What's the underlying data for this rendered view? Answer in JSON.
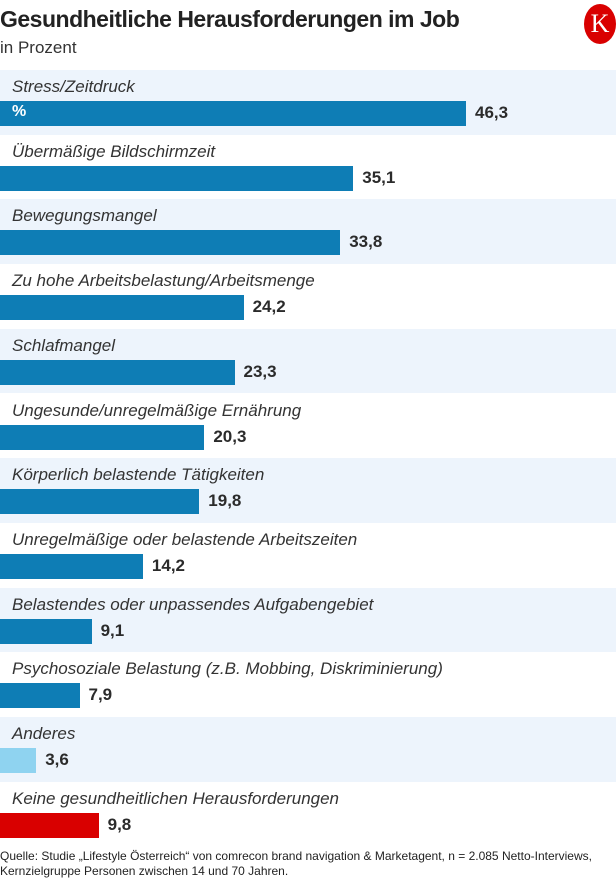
{
  "header": {
    "title": "Gesundheitliche Herausforderungen im Job",
    "subtitle": "in Prozent",
    "logo": "K"
  },
  "chart_data": {
    "type": "bar",
    "orientation": "horizontal",
    "title": "Gesundheitliche Herausforderungen im Job",
    "subtitle": "in Prozent",
    "unit_label": "%",
    "categories": [
      "Stress/Zeitdruck",
      "Übermäßige Bildschirmzeit",
      "Bewegungsmangel",
      "Zu hohe Arbeitsbelastung/Arbeitsmenge",
      "Schlafmangel",
      "Ungesunde/unregelmäßige Ernährung",
      "Körperlich belastende Tätigkeiten",
      "Unregelmäßige oder belastende Arbeitszeiten",
      "Belastendes oder unpassendes Aufgabengebiet",
      "Psychosoziale Belastung (z.B. Mobbing, Diskriminierung)",
      "Anderes",
      "Keine gesundheitlichen Herausforderungen"
    ],
    "values": [
      46.3,
      35.1,
      33.8,
      24.2,
      23.3,
      20.3,
      19.8,
      14.2,
      9.1,
      7.9,
      3.6,
      9.8
    ],
    "value_labels": [
      "46,3",
      "35,1",
      "33,8",
      "24,2",
      "23,3",
      "20,3",
      "19,8",
      "14,2",
      "9,1",
      "7,9",
      "3,6",
      "9,8"
    ],
    "colors": [
      "#0e7db5",
      "#0e7db5",
      "#0e7db5",
      "#0e7db5",
      "#0e7db5",
      "#0e7db5",
      "#0e7db5",
      "#0e7db5",
      "#0e7db5",
      "#0e7db5",
      "#8fd3f0",
      "#d90000"
    ],
    "xlim": [
      0,
      61
    ],
    "grid": false,
    "legend": "none"
  },
  "source": "Quelle: Studie „Lifestyle Österreich“ von comrecon brand navigation & Marketagent, n = 2.085 Netto-Interviews, Kernzielgruppe Personen zwischen 14 und 70 Jahren."
}
